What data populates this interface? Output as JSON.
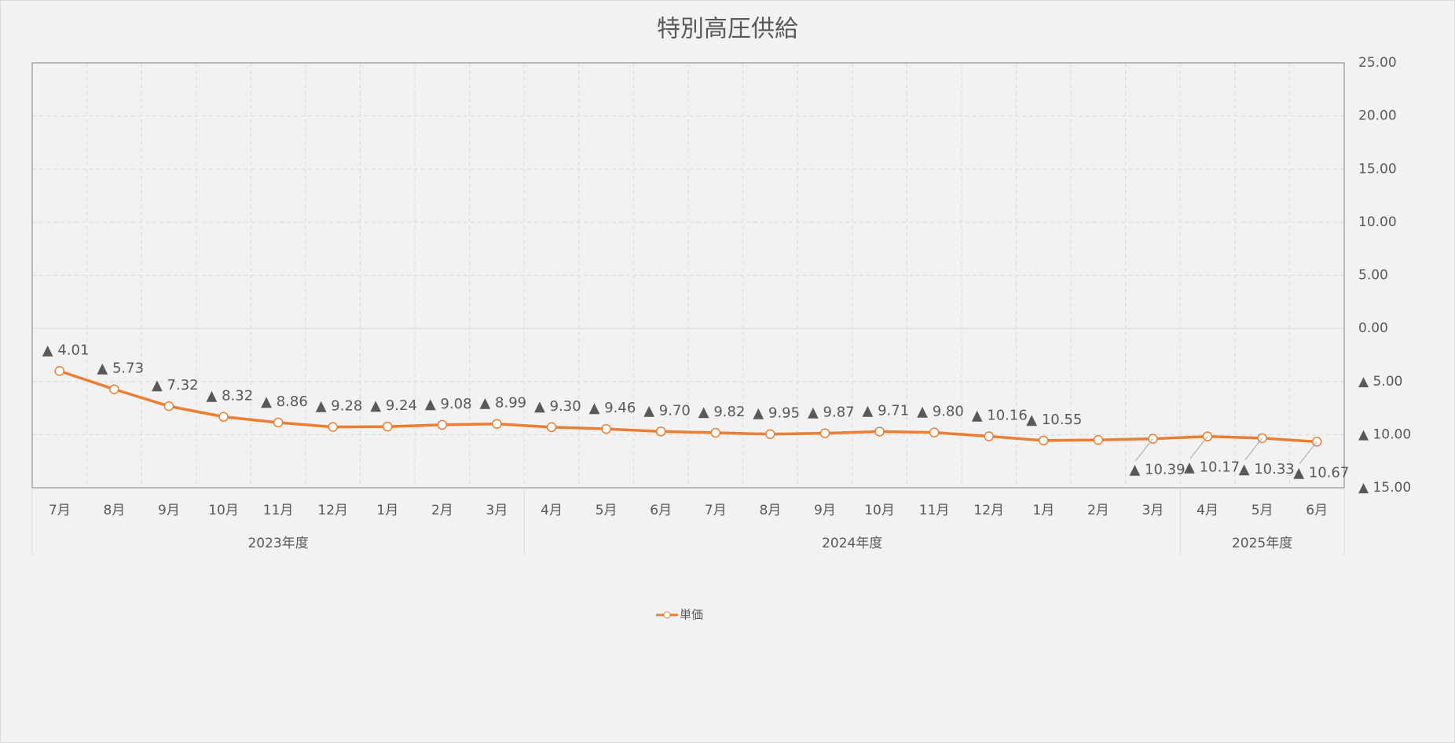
{
  "chart_data": {
    "type": "line",
    "title": "特別高圧供給",
    "categories": [
      "7月",
      "8月",
      "9月",
      "10月",
      "11月",
      "12月",
      "1月",
      "2月",
      "3月",
      "4月",
      "5月",
      "6月",
      "7月",
      "8月",
      "9月",
      "10月",
      "11月",
      "12月",
      "1月",
      "2月",
      "3月",
      "4月",
      "5月",
      "6月"
    ],
    "groups": [
      {
        "label": "2023年度",
        "span": 9
      },
      {
        "label": "2024年度",
        "span": 12
      },
      {
        "label": "2025年度",
        "span": 3
      }
    ],
    "series": [
      {
        "name": "単価",
        "color": "#ed7d31",
        "values": [
          -4.01,
          -5.73,
          -7.32,
          -8.32,
          -8.86,
          -9.28,
          -9.24,
          -9.08,
          -8.99,
          -9.3,
          -9.46,
          -9.7,
          -9.82,
          -9.95,
          -9.87,
          -9.71,
          -9.8,
          -10.16,
          -10.55,
          -10.5,
          -10.39,
          -10.17,
          -10.33,
          -10.67
        ],
        "value_labels": [
          "▲ 4.01",
          "▲ 5.73",
          "▲ 7.32",
          "▲ 8.32",
          "▲ 8.86",
          "▲ 9.28",
          "▲ 9.24",
          "▲ 9.08",
          "▲ 8.99",
          "▲ 9.30",
          "▲ 9.46",
          "▲ 9.70",
          "▲ 9.82",
          "▲ 9.95",
          "▲ 9.87",
          "▲ 9.71",
          "▲ 9.80",
          "▲ 10.16",
          "▲ 10.55",
          null,
          "▲ 10.39",
          "▲ 10.17",
          "▲ 10.33",
          "▲ 10.67"
        ]
      }
    ],
    "ylim": [
      -15,
      25
    ],
    "yticks": [
      {
        "value": -15,
        "label": "▲ 15.00"
      },
      {
        "value": -10,
        "label": "▲ 10.00"
      },
      {
        "value": -5,
        "label": "▲ 5.00"
      },
      {
        "value": 0,
        "label": "0.00"
      },
      {
        "value": 5,
        "label": "5.00"
      },
      {
        "value": 10,
        "label": "10.00"
      },
      {
        "value": 15,
        "label": "15.00"
      },
      {
        "value": 20,
        "label": "20.00"
      },
      {
        "value": 25,
        "label": "25.00"
      }
    ],
    "grid": true,
    "legend": "bottom"
  }
}
